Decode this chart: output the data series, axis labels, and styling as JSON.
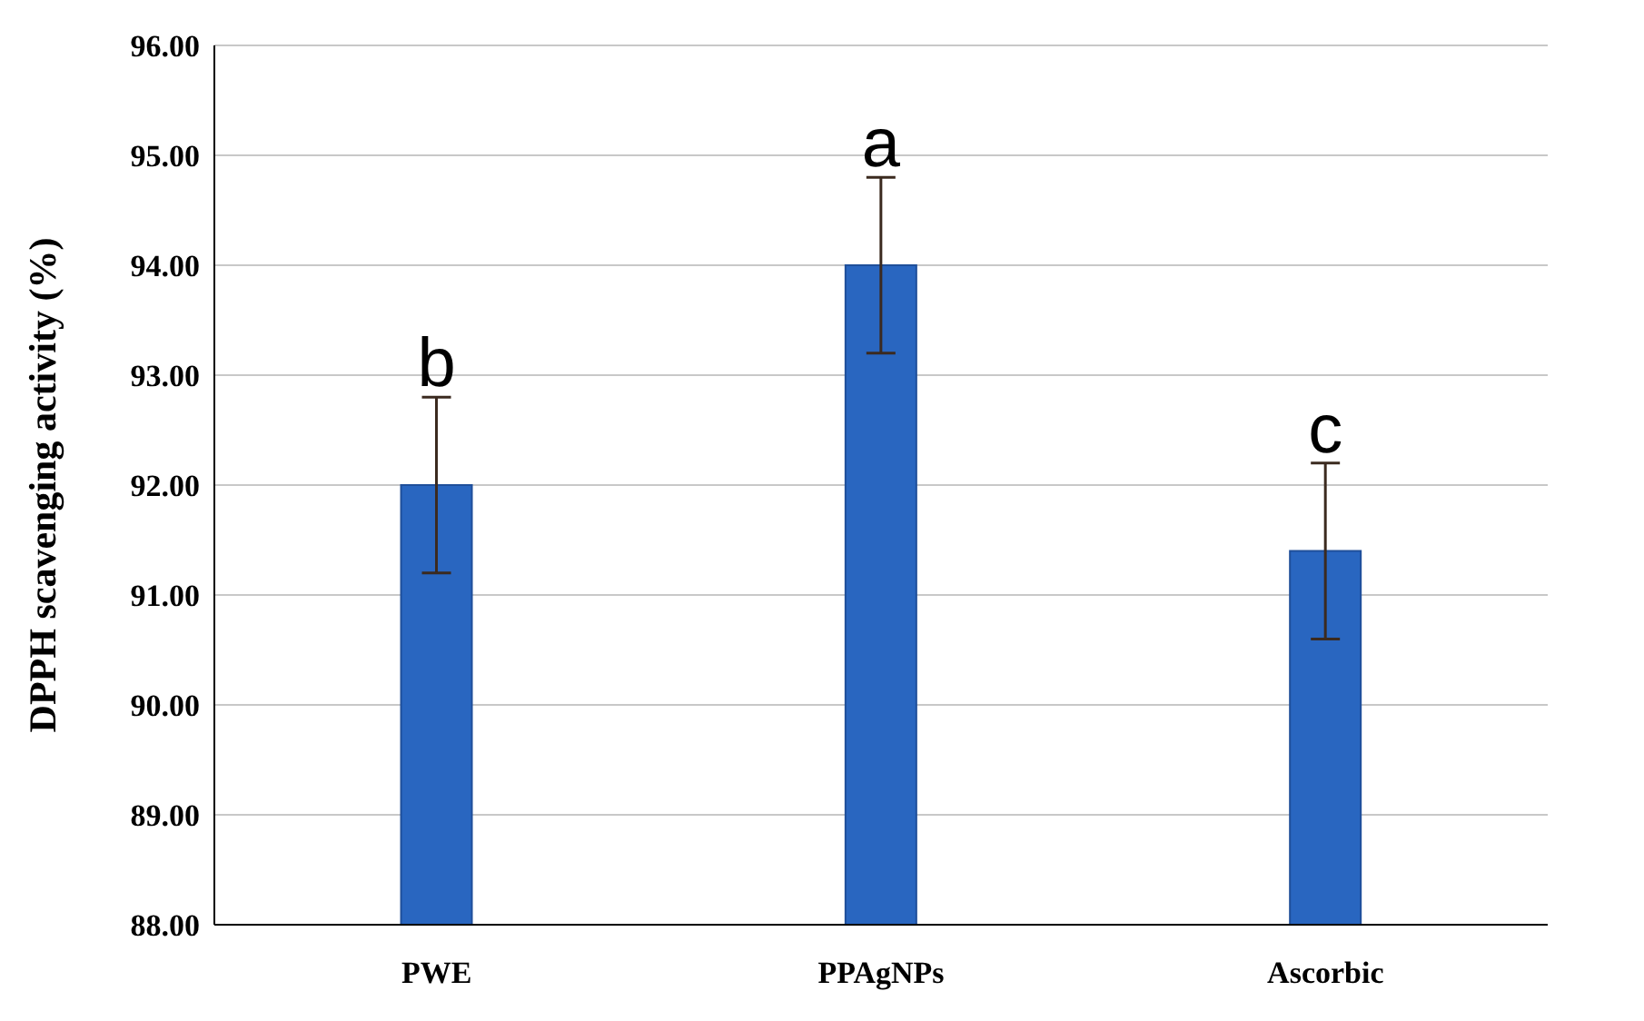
{
  "chart_data": {
    "type": "bar",
    "ylabel": "DPPH scavenging activity (%)",
    "categories": [
      "PWE",
      "PPAgNPs",
      "Ascorbic"
    ],
    "values": [
      92.0,
      94.0,
      91.4
    ],
    "errors": [
      0.8,
      0.8,
      0.8
    ],
    "color": "#2966c0",
    "ylim": [
      88,
      96
    ],
    "yticks": [
      {
        "value": 88,
        "label": "88.00"
      },
      {
        "value": 89,
        "label": "89.00"
      },
      {
        "value": 90,
        "label": "90.00"
      },
      {
        "value": 91,
        "label": "91.00"
      },
      {
        "value": 92,
        "label": "92.00"
      },
      {
        "value": 93,
        "label": "93.00"
      },
      {
        "value": 94,
        "label": "94.00"
      },
      {
        "value": 95,
        "label": "95.00"
      },
      {
        "value": 96,
        "label": "96.00"
      }
    ],
    "grid": "y",
    "annotations": [
      {
        "text": "b",
        "x": "PWE",
        "y": 92.8
      },
      {
        "text": "a",
        "x": "PPAgNPs",
        "y": 94.8
      },
      {
        "text": "c",
        "x": "Ascorbic",
        "y": 92.2
      }
    ]
  }
}
